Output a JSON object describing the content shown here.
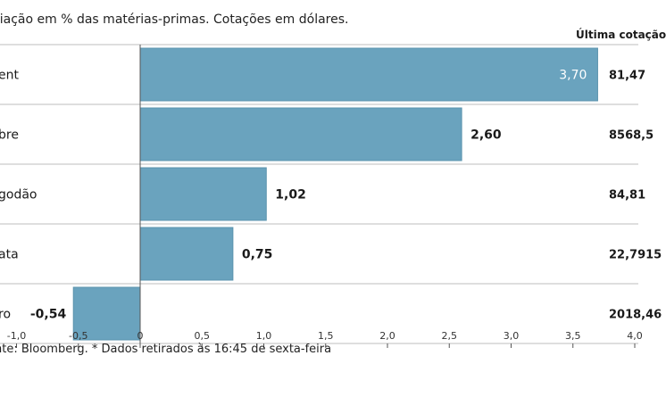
{
  "subtitle": "riação em % das matérias-primas. Cotações em dólares.",
  "last_quote_header": "Última cotação",
  "footer": "nte: Bloomberg.  * Dados retirados às 16:45 de sexta-feira",
  "colors": {
    "bar": "#6aa3be",
    "bar_stroke": "#5b93ad",
    "grid": "#bdbdbd"
  },
  "chart_data": {
    "type": "bar",
    "orientation": "horizontal",
    "title": "",
    "xlabel": "",
    "ylabel": "",
    "xlim": [
      -1.0,
      4.0
    ],
    "x_ticks": [
      "-1,0",
      "-0,5",
      "0",
      "0,5",
      "1,0",
      "1,5",
      "2,0",
      "2,5",
      "3,0",
      "3,5",
      "4,0"
    ],
    "categories": [
      "ent",
      "bre",
      "godão",
      "ata",
      "ro"
    ],
    "values": [
      3.7,
      2.6,
      1.02,
      0.75,
      -0.54
    ],
    "value_labels": [
      "3,70",
      "2,60",
      "1,02",
      "0,75",
      "-0,54"
    ],
    "last_quote": [
      "81,47",
      "8568,5",
      "84,81",
      "22,7915",
      "2018,46"
    ]
  }
}
